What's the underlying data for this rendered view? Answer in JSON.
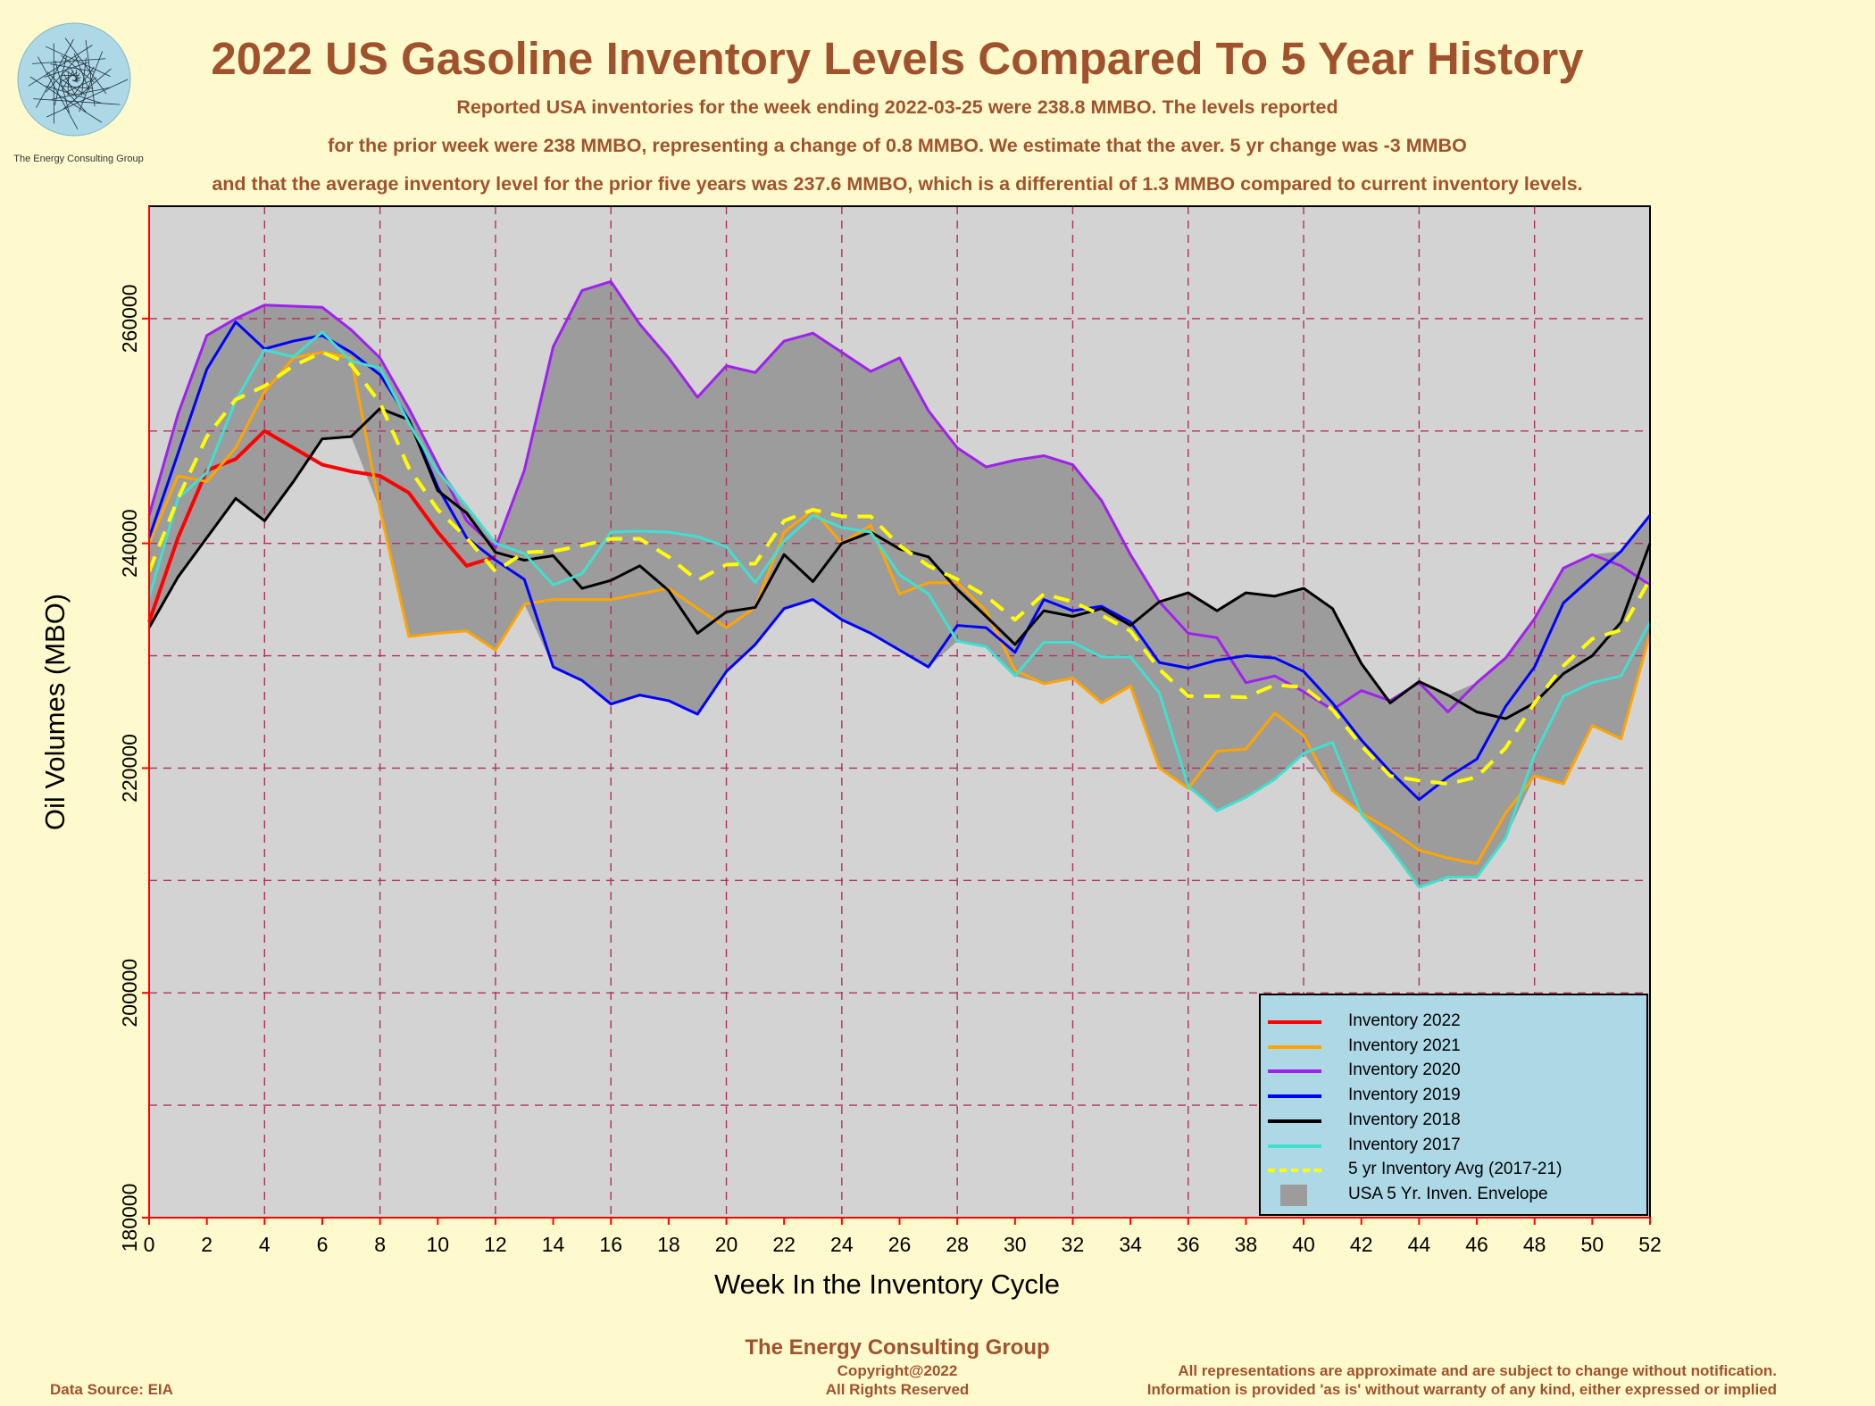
{
  "title": "2022 US Gasoline Inventory Levels Compared To 5 Year History",
  "subtitle_lines": [
    "Reported USA inventories for the week ending 2022-03-25 were 238.8 MMBO.  The levels reported",
    "for the prior week were 238 MMBO, representing a change of 0.8 MMBO.  We estimate that the aver. 5 yr change was -3 MMBO",
    "and that the average inventory level for the prior five years was 237.6 MMBO, which is a differential of 1.3 MMBO compared to current inventory levels."
  ],
  "logo_text": "The Energy Consulting Group",
  "footer": {
    "company": "The Energy Consulting Group",
    "copyright": "Copyright@2022",
    "rights": "All Rights Reserved",
    "source": "Data Source: EIA",
    "disclaimer1": "All representations are approximate and are subject to change without notification.",
    "disclaimer2": "Information is provided 'as is' without warranty of any kind, either expressed or implied"
  },
  "colors": {
    "background": "#fffacd",
    "plot_bg": "#d3d3d3",
    "envelope": "#9c9c9c",
    "grid": "#b03060",
    "title": "#a0522d",
    "legend_bg": "#add8e6"
  },
  "chart_data": {
    "type": "line",
    "xlabel": "Week In the Inventory Cycle",
    "ylabel": "Oil Volumes (MBO)",
    "xlim": [
      0,
      52
    ],
    "ylim": [
      180000,
      270000
    ],
    "xticks": [
      0,
      2,
      4,
      6,
      8,
      10,
      12,
      14,
      16,
      18,
      20,
      22,
      24,
      26,
      28,
      30,
      32,
      34,
      36,
      38,
      40,
      42,
      44,
      46,
      48,
      50,
      52
    ],
    "yticks": [
      180000,
      200000,
      220000,
      240000,
      260000
    ],
    "grid": true,
    "legend_position": "bottom-right",
    "series": [
      {
        "name": "Inventory 2022",
        "color": "#ff0000",
        "width": 4,
        "dash": false,
        "values": [
          233000,
          240500,
          246500,
          247500,
          250000,
          248500,
          247000,
          246400,
          246000,
          244500,
          241000,
          238000,
          238800
        ]
      },
      {
        "name": "Inventory 2021",
        "color": "#ffa500",
        "width": 3,
        "dash": false,
        "values": [
          240000,
          246000,
          245500,
          248500,
          253500,
          256500,
          257000,
          256500,
          243000,
          231700,
          232000,
          232200,
          230500,
          234600,
          235000,
          235000,
          235000,
          235500,
          236000,
          234200,
          232500,
          234300,
          241000,
          243000,
          240000,
          241600,
          235500,
          236500,
          236500,
          234000,
          228700,
          227500,
          228000,
          225800,
          227300,
          220000,
          218200,
          221500,
          221700,
          224900,
          222900,
          218000,
          216000,
          214500,
          212700,
          212000,
          211500,
          216000,
          219300,
          218600,
          223800,
          222600,
          232000
        ]
      },
      {
        "name": "Inventory 2020",
        "color": "#a020f0",
        "width": 3,
        "dash": false,
        "values": [
          242500,
          251500,
          258500,
          260000,
          261200,
          261100,
          261000,
          259000,
          256500,
          252000,
          247000,
          242000,
          239600,
          246500,
          257500,
          262500,
          263300,
          259500,
          256500,
          253000,
          255800,
          255200,
          258000,
          258700,
          257000,
          255300,
          256500,
          251800,
          248500,
          246800,
          247400,
          247800,
          247000,
          243800,
          239000,
          234800,
          232000,
          231600,
          227600,
          228200,
          226800,
          225200,
          226900,
          226000,
          227600,
          225000,
          227600,
          229800,
          233300,
          237800,
          239000,
          238000,
          236300
        ]
      },
      {
        "name": "Inventory 2019",
        "color": "#0000ff",
        "width": 3,
        "dash": false,
        "values": [
          240500,
          248000,
          255500,
          259700,
          257300,
          258000,
          258500,
          257000,
          255000,
          251000,
          245000,
          240500,
          238500,
          236800,
          229000,
          227800,
          225700,
          226500,
          226000,
          224800,
          228600,
          231000,
          234200,
          235000,
          233200,
          232000,
          230500,
          229000,
          232700,
          232500,
          230300,
          235000,
          234000,
          234400,
          233000,
          229400,
          228900,
          229600,
          230000,
          229800,
          228600,
          225800,
          222500,
          219700,
          217200,
          219200,
          220800,
          225500,
          229000,
          234700,
          237000,
          239300,
          242500
        ]
      },
      {
        "name": "Inventory 2018",
        "color": "#000000",
        "width": 3,
        "dash": false,
        "values": [
          232500,
          237000,
          240500,
          244000,
          242000,
          245500,
          249300,
          249500,
          252000,
          251000,
          244700,
          242700,
          239200,
          238500,
          238900,
          236000,
          236700,
          238000,
          235800,
          232000,
          233900,
          234300,
          239000,
          236600,
          240000,
          241000,
          239500,
          238800,
          235900,
          233500,
          231000,
          234000,
          233500,
          234200,
          232700,
          234800,
          235600,
          234000,
          235600,
          235300,
          236000,
          234200,
          229300,
          225800,
          227700,
          226500,
          225000,
          224400,
          225800,
          228400,
          230000,
          233000,
          240000
        ]
      },
      {
        "name": "Inventory 2017",
        "color": "#40e0d0",
        "width": 3,
        "dash": false,
        "values": [
          235200,
          244000,
          246300,
          252700,
          257200,
          256600,
          258800,
          256200,
          255600,
          250700,
          246400,
          243300,
          240000,
          239100,
          236300,
          237300,
          241000,
          241100,
          241000,
          240600,
          239700,
          236500,
          240200,
          242500,
          241400,
          241000,
          237200,
          235500,
          231300,
          230800,
          228200,
          231200,
          231200,
          229900,
          229900,
          226700,
          218400,
          216200,
          217400,
          219000,
          221300,
          222300,
          215900,
          212900,
          209400,
          210300,
          210300,
          213800,
          221200,
          226400,
          227600,
          228200,
          233000
        ]
      },
      {
        "name": "5 yr Inventory Avg (2017-21)",
        "color": "#ffff00",
        "width": 4,
        "dash": true,
        "values": [
          237500,
          244000,
          249500,
          252800,
          254000,
          255800,
          257000,
          255900,
          252500,
          246700,
          243000,
          240500,
          237500,
          239200,
          239300,
          239800,
          240400,
          240400,
          238800,
          236700,
          238100,
          238200,
          242000,
          243000,
          242400,
          242400,
          239800,
          238000,
          236800,
          235300,
          233200,
          235500,
          234800,
          233600,
          232200,
          228800,
          226400,
          226400,
          226300,
          227400,
          227200,
          225200,
          222000,
          219300,
          218900,
          218600,
          219200,
          221800,
          225800,
          229100,
          231500,
          232300,
          236800
        ]
      }
    ],
    "envelope_label": "USA 5 Yr. Inven. Envelope"
  },
  "legend": [
    {
      "label": "Inventory 2022",
      "color": "#ff0000",
      "style": "line"
    },
    {
      "label": "Inventory 2021",
      "color": "#ffa500",
      "style": "line"
    },
    {
      "label": "Inventory 2020",
      "color": "#a020f0",
      "style": "line"
    },
    {
      "label": "Inventory 2019",
      "color": "#0000ff",
      "style": "line"
    },
    {
      "label": "Inventory 2018",
      "color": "#000000",
      "style": "line"
    },
    {
      "label": "Inventory 2017",
      "color": "#40e0d0",
      "style": "line"
    },
    {
      "label": "5 yr Inventory Avg (2017-21)",
      "color": "#ffff00",
      "style": "dash"
    },
    {
      "label": "USA 5 Yr. Inven. Envelope",
      "color": "#9c9c9c",
      "style": "box"
    }
  ]
}
